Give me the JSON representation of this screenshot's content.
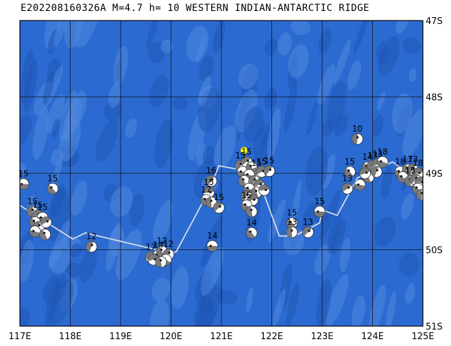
{
  "title": "E202208160326A  M=4.7  h= 10  WESTERN INDIAN-ANTARCTIC  RIDGE",
  "map": {
    "lon_range": [
      117,
      125
    ],
    "lat_range": [
      -51,
      -47
    ],
    "lon_ticks": [
      "117E",
      "118E",
      "119E",
      "120E",
      "121E",
      "122E",
      "123E",
      "124E",
      "125E"
    ],
    "lat_ticks": [
      "47S",
      "48S",
      "49S",
      "50S",
      "51S"
    ],
    "colors": {
      "ocean": "#2b6ad0",
      "ocean_dark": "#1f55b6",
      "ocean_light": "#4f86de",
      "grid": "#111111",
      "ridge": "#d8dfe8",
      "event": "#ffff00"
    }
  },
  "ridge_axis": [
    [
      117.0,
      -49.42
    ],
    [
      118.05,
      -49.86
    ],
    [
      118.3,
      -49.78
    ],
    [
      119.9,
      -50.03
    ],
    [
      120.1,
      -50.03
    ],
    [
      120.75,
      -49.23
    ],
    [
      120.95,
      -48.9
    ],
    [
      121.6,
      -48.98
    ],
    [
      121.75,
      -49.1
    ],
    [
      122.15,
      -49.82
    ],
    [
      122.45,
      -49.82
    ],
    [
      122.95,
      -49.65
    ],
    [
      123.0,
      -49.48
    ],
    [
      123.3,
      -49.55
    ],
    [
      123.7,
      -49.06
    ],
    [
      123.95,
      -48.98
    ],
    [
      124.4,
      -48.85
    ],
    [
      124.9,
      -49.1
    ],
    [
      125.0,
      -49.3
    ]
  ],
  "current_event": {
    "lon": 121.45,
    "lat": -48.7
  },
  "mechanisms": [
    {
      "lon": 117.07,
      "lat": -49.14,
      "label": "15"
    },
    {
      "lon": 117.65,
      "lat": -49.2,
      "label": "15"
    },
    {
      "lon": 117.25,
      "lat": -49.5,
      "label": "15"
    },
    {
      "lon": 117.35,
      "lat": -49.55,
      "label": "15"
    },
    {
      "lon": 117.45,
      "lat": -49.58,
      "label": "15"
    },
    {
      "lon": 117.3,
      "lat": -49.64,
      "label": ""
    },
    {
      "lon": 117.38,
      "lat": -49.7,
      "label": ""
    },
    {
      "lon": 117.52,
      "lat": -49.64,
      "label": ""
    },
    {
      "lon": 117.3,
      "lat": -49.76,
      "label": ""
    },
    {
      "lon": 117.5,
      "lat": -49.8,
      "label": ""
    },
    {
      "lon": 118.42,
      "lat": -49.96,
      "label": "12"
    },
    {
      "lon": 119.6,
      "lat": -50.1,
      "label": "17"
    },
    {
      "lon": 119.75,
      "lat": -50.07,
      "label": "14"
    },
    {
      "lon": 119.82,
      "lat": -50.02,
      "label": "12"
    },
    {
      "lon": 119.95,
      "lat": -50.06,
      "label": "12"
    },
    {
      "lon": 119.65,
      "lat": -50.13,
      "label": ""
    },
    {
      "lon": 119.9,
      "lat": -50.13,
      "label": ""
    },
    {
      "lon": 119.8,
      "lat": -50.16,
      "label": ""
    },
    {
      "lon": 120.8,
      "lat": -49.1,
      "label": "16"
    },
    {
      "lon": 120.75,
      "lat": -49.25,
      "label": "15"
    },
    {
      "lon": 120.7,
      "lat": -49.35,
      "label": "17"
    },
    {
      "lon": 120.8,
      "lat": -49.38,
      "label": ""
    },
    {
      "lon": 120.95,
      "lat": -49.45,
      "label": "15"
    },
    {
      "lon": 120.82,
      "lat": -49.95,
      "label": "14"
    },
    {
      "lon": 121.6,
      "lat": -49.78,
      "label": "14"
    },
    {
      "lon": 121.38,
      "lat": -48.9,
      "label": "15"
    },
    {
      "lon": 121.5,
      "lat": -48.85,
      "label": "15"
    },
    {
      "lon": 121.42,
      "lat": -48.98,
      "label": ""
    },
    {
      "lon": 121.6,
      "lat": -48.92,
      "label": ""
    },
    {
      "lon": 121.7,
      "lat": -49.0,
      "label": "15"
    },
    {
      "lon": 121.8,
      "lat": -48.98,
      "label": "15"
    },
    {
      "lon": 121.55,
      "lat": -49.02,
      "label": ""
    },
    {
      "lon": 121.45,
      "lat": -49.1,
      "label": ""
    },
    {
      "lon": 121.65,
      "lat": -49.1,
      "label": ""
    },
    {
      "lon": 121.75,
      "lat": -49.15,
      "label": ""
    },
    {
      "lon": 121.55,
      "lat": -49.2,
      "label": ""
    },
    {
      "lon": 121.7,
      "lat": -49.25,
      "label": ""
    },
    {
      "lon": 121.5,
      "lat": -49.3,
      "label": ""
    },
    {
      "lon": 121.62,
      "lat": -49.35,
      "label": ""
    },
    {
      "lon": 121.5,
      "lat": -49.42,
      "label": "15"
    },
    {
      "lon": 121.6,
      "lat": -49.5,
      "label": ""
    },
    {
      "lon": 121.95,
      "lat": -48.97,
      "label": "15"
    },
    {
      "lon": 121.85,
      "lat": -49.22,
      "label": ""
    },
    {
      "lon": 122.4,
      "lat": -49.65,
      "label": "15"
    },
    {
      "lon": 122.4,
      "lat": -49.77,
      "label": "13"
    },
    {
      "lon": 122.72,
      "lat": -49.77,
      "label": "13"
    },
    {
      "lon": 122.95,
      "lat": -49.5,
      "label": "15"
    },
    {
      "lon": 123.55,
      "lat": -48.98,
      "label": "15"
    },
    {
      "lon": 123.7,
      "lat": -48.55,
      "label": "10"
    },
    {
      "lon": 123.5,
      "lat": -49.2,
      "label": "13"
    },
    {
      "lon": 123.75,
      "lat": -49.15,
      "label": ""
    },
    {
      "lon": 123.9,
      "lat": -48.92,
      "label": "14"
    },
    {
      "lon": 124.0,
      "lat": -48.9,
      "label": "13"
    },
    {
      "lon": 124.1,
      "lat": -48.88,
      "label": "13"
    },
    {
      "lon": 124.2,
      "lat": -48.85,
      "label": "18"
    },
    {
      "lon": 123.92,
      "lat": -49.05,
      "label": ""
    },
    {
      "lon": 124.08,
      "lat": -48.98,
      "label": ""
    },
    {
      "lon": 123.85,
      "lat": -49.0,
      "label": ""
    },
    {
      "lon": 124.55,
      "lat": -48.98,
      "label": "18"
    },
    {
      "lon": 124.7,
      "lat": -48.95,
      "label": "17"
    },
    {
      "lon": 124.8,
      "lat": -48.95,
      "label": "13"
    },
    {
      "lon": 124.9,
      "lat": -49.0,
      "label": "18"
    },
    {
      "lon": 124.6,
      "lat": -49.05,
      "label": ""
    },
    {
      "lon": 124.75,
      "lat": -49.1,
      "label": "15"
    },
    {
      "lon": 124.85,
      "lat": -49.08,
      "label": ""
    },
    {
      "lon": 124.95,
      "lat": -49.12,
      "label": ""
    },
    {
      "lon": 124.9,
      "lat": -49.2,
      "label": ""
    },
    {
      "lon": 124.98,
      "lat": -49.28,
      "label": ""
    }
  ]
}
